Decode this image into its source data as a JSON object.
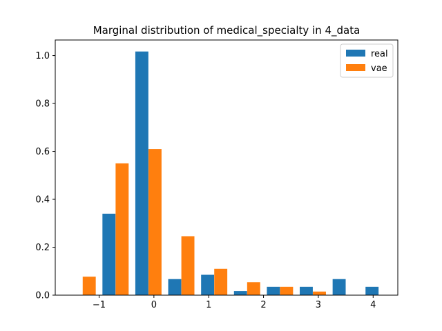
{
  "chart_data": {
    "type": "bar",
    "title": "Marginal distribution of medical_specialty in 4_data",
    "xlabel": "",
    "ylabel": "",
    "xlim": [
      -1.8,
      4.45
    ],
    "ylim": [
      0,
      1.065
    ],
    "x_ticks": [
      -1,
      0,
      1,
      2,
      3,
      4
    ],
    "x_tick_labels": [
      "−1",
      "0",
      "1",
      "2",
      "3",
      "4"
    ],
    "y_ticks": [
      0.0,
      0.2,
      0.4,
      0.6,
      0.8,
      1.0
    ],
    "y_tick_labels": [
      "0.0",
      "0.2",
      "0.4",
      "0.6",
      "0.8",
      "1.0"
    ],
    "bar_width": 0.238,
    "legend_position": "top-right",
    "series": [
      {
        "name": "real",
        "color": "#1f77b4",
        "x": [
          -1.42,
          -0.82,
          -0.22,
          0.38,
          0.98,
          1.58,
          2.18,
          2.78,
          3.38,
          3.98
        ],
        "values": [
          0.0,
          0.34,
          1.017,
          0.067,
          0.085,
          0.017,
          0.035,
          0.035,
          0.067,
          0.035
        ]
      },
      {
        "name": "vae",
        "color": "#ff7f0e",
        "x": [
          -1.18,
          -0.58,
          0.02,
          0.62,
          1.22,
          1.82,
          2.42,
          3.02,
          3.62,
          4.22
        ],
        "values": [
          0.077,
          0.55,
          0.61,
          0.246,
          0.11,
          0.054,
          0.035,
          0.015,
          0.0,
          0.0
        ]
      }
    ]
  }
}
